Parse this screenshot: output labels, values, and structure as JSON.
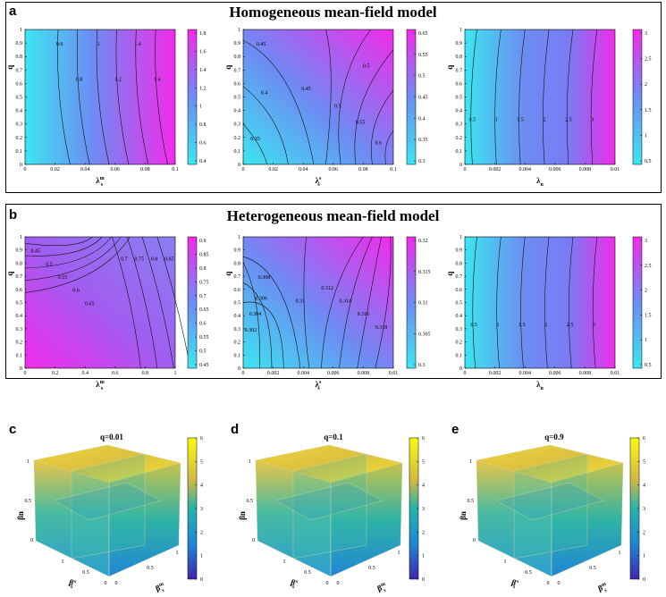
{
  "panel_labels": [
    "a",
    "b",
    "c",
    "d",
    "e"
  ],
  "section_a_title": "Homogeneous mean-field model",
  "section_b_title": "Heterogeneous mean-field model",
  "colors": {
    "low": "#3ce6f0",
    "mid": "#6d8cf3",
    "high": "#f22bea"
  },
  "chart_data": [
    {
      "type": "heatmap",
      "panel": "a",
      "index": 1,
      "xlabel": "λs^m",
      "ylabel": "q",
      "xlim": [
        0,
        0.1
      ],
      "ylim": [
        0,
        1
      ],
      "xticks": [
        "0",
        "0.02",
        "0.04",
        "0.06",
        "0.08",
        "0.1"
      ],
      "yticks": [
        "0",
        "0.1",
        "0.2",
        "0.3",
        "0.4",
        "0.5",
        "0.6",
        "0.7",
        "0.8",
        "0.9",
        "1"
      ],
      "colorbar_ticks": [
        "0.4",
        "0.6",
        "0.8",
        "1",
        "1.2",
        "1.4",
        "1.6",
        "1.8"
      ],
      "contour_labels": [
        "0.6",
        "0.8",
        "1",
        "1.2",
        "1.4",
        "1.6"
      ]
    },
    {
      "type": "heatmap",
      "panel": "a",
      "index": 2,
      "xlabel": "λs^s",
      "ylabel": "q",
      "xlim": [
        0,
        0.1
      ],
      "ylim": [
        0,
        1
      ],
      "xticks": [
        "0",
        "0.02",
        "0.04",
        "0.06",
        "0.08",
        "0.1"
      ],
      "yticks": [
        "0",
        "0.1",
        "0.2",
        "0.3",
        "0.4",
        "0.5",
        "0.6",
        "0.7",
        "0.8",
        "0.9",
        "1"
      ],
      "colorbar_ticks": [
        "0.3",
        "0.35",
        "0.4",
        "0.45",
        "0.5",
        "0.55",
        "0.65"
      ],
      "contour_labels": [
        "0.45",
        "0.4",
        "0.35",
        "0.45",
        "0.5",
        "0.55",
        "0.6",
        "0.5"
      ]
    },
    {
      "type": "heatmap",
      "panel": "a",
      "index": 3,
      "xlabel": "λn",
      "ylabel": "q",
      "xlim": [
        0,
        0.01
      ],
      "ylim": [
        0,
        1
      ],
      "xticks": [
        "0",
        "0.002",
        "0.004",
        "0.006",
        "0.008",
        "0.01"
      ],
      "yticks": [
        "0",
        "0.1",
        "0.2",
        "0.3",
        "0.4",
        "0.5",
        "0.6",
        "0.7",
        "0.8",
        "0.9",
        "1"
      ],
      "colorbar_ticks": [
        "0.5",
        "1",
        "1.5",
        "2",
        "2.5",
        "3"
      ],
      "contour_labels": [
        "0.5",
        "1",
        "1.5",
        "2",
        "2.5",
        "3"
      ]
    },
    {
      "type": "heatmap",
      "panel": "b",
      "index": 1,
      "xlabel": "λs^m",
      "ylabel": "q",
      "xlim": [
        0,
        1
      ],
      "ylim": [
        0,
        1
      ],
      "xticks": [
        "0",
        "0.2",
        "0.4",
        "0.6",
        "0.8",
        "1"
      ],
      "yticks": [
        "0",
        "0.1",
        "0.2",
        "0.3",
        "0.4",
        "0.5",
        "0.6",
        "0.7",
        "0.8",
        "0.9",
        "1"
      ],
      "colorbar_ticks": [
        "0.45",
        "0.5",
        "0.55",
        "0.6",
        "0.65",
        "0.7",
        "0.75",
        "0.8",
        "0.85",
        "0.9"
      ],
      "contour_labels": [
        "0.45",
        "0.5",
        "0.55",
        "0.6",
        "0.65",
        "0.7",
        "0.75",
        "0.8",
        "0.85"
      ]
    },
    {
      "type": "heatmap",
      "panel": "b",
      "index": 2,
      "xlabel": "λs^s",
      "ylabel": "q",
      "xlim": [
        0,
        0.01
      ],
      "ylim": [
        0,
        1
      ],
      "xticks": [
        "0",
        "0.002",
        "0.004",
        "0.006",
        "0.008",
        "0.01"
      ],
      "yticks": [
        "0",
        "0.1",
        "0.2",
        "0.3",
        "0.4",
        "0.5",
        "0.6",
        "0.7",
        "0.8",
        "0.9",
        "1"
      ],
      "colorbar_ticks": [
        "0.3",
        "0.305",
        "0.31",
        "0.315",
        "0.32"
      ],
      "contour_labels": [
        "0.308",
        "0.306",
        "0.304",
        "0.302",
        "0.31",
        "0.312",
        "0.314",
        "0.316",
        "0.318"
      ]
    },
    {
      "type": "heatmap",
      "panel": "b",
      "index": 3,
      "xlabel": "λn",
      "ylabel": "q",
      "xlim": [
        0,
        0.01
      ],
      "ylim": [
        0,
        1
      ],
      "xticks": [
        "0",
        "0.002",
        "0.004",
        "0.006",
        "0.008",
        "0.01"
      ],
      "yticks": [
        "0",
        "0.1",
        "0.2",
        "0.3",
        "0.4",
        "0.5",
        "0.6",
        "0.7",
        "0.8",
        "0.9",
        "1"
      ],
      "colorbar_ticks": [
        "0.5",
        "1",
        "1.5",
        "2",
        "2.5",
        "3"
      ],
      "contour_labels": [
        "0.5",
        "1",
        "1.5",
        "2",
        "2.5",
        "3"
      ]
    },
    {
      "type": "heatmap",
      "panel": "c",
      "title": "q=0.01",
      "zlabel": "βn",
      "xlabel": "βs^m",
      "ylabel": "βs^s",
      "axis_ticks": [
        "0",
        "0.5",
        "1"
      ],
      "colorbar_ticks": [
        "0",
        "1",
        "2",
        "3",
        "4",
        "5",
        "6"
      ]
    },
    {
      "type": "heatmap",
      "panel": "d",
      "title": "q=0.1",
      "zlabel": "βn",
      "xlabel": "βs^m",
      "ylabel": "βs^s",
      "axis_ticks": [
        "0",
        "0.5",
        "1"
      ],
      "colorbar_ticks": [
        "0",
        "1",
        "2",
        "3",
        "4",
        "5",
        "6"
      ]
    },
    {
      "type": "heatmap",
      "panel": "e",
      "title": "q=0.9",
      "zlabel": "βn",
      "xlabel": "βs^m",
      "ylabel": "βs^s",
      "axis_ticks": [
        "0",
        "0.5",
        "1"
      ],
      "colorbar_ticks": [
        "0",
        "1",
        "2",
        "3",
        "4",
        "5",
        "6"
      ]
    }
  ]
}
